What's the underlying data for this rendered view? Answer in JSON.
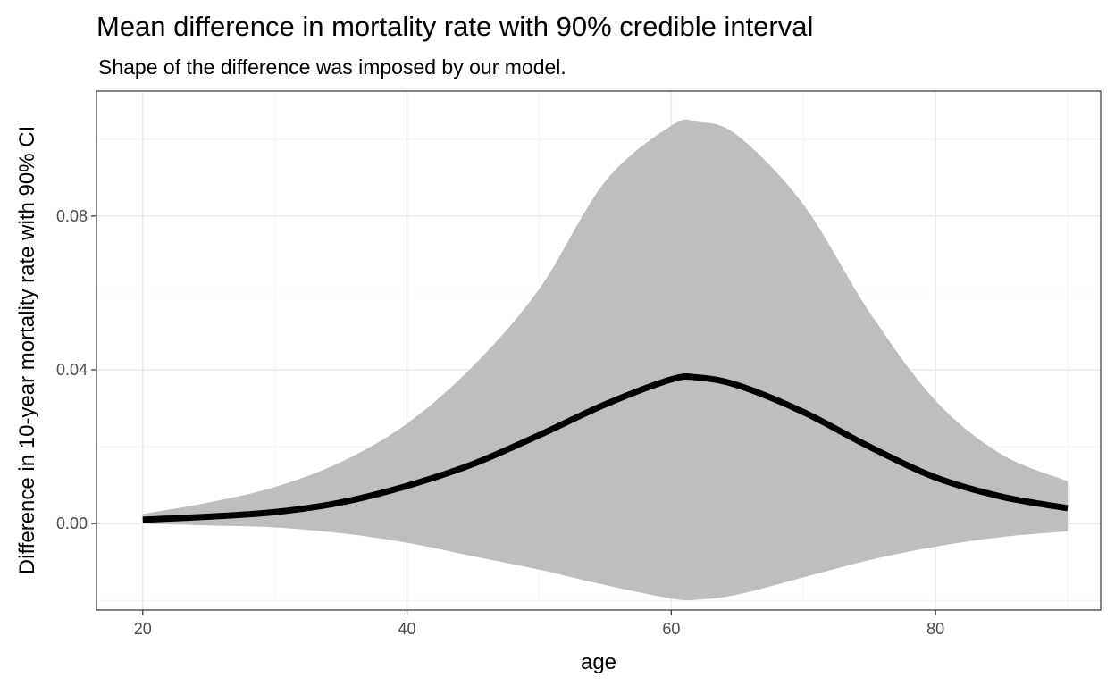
{
  "chart_data": {
    "type": "area",
    "title": "Mean difference in mortality rate with 90% credible interval",
    "subtitle": "Shape of the difference was imposed by our model.",
    "xlabel": "age",
    "ylabel": "Difference in 10-year mortality rate with 90% CI",
    "xlim": [
      16.5,
      92.5
    ],
    "ylim": [
      -0.0225,
      0.1125
    ],
    "x_ticks": [
      "20",
      "40",
      "60",
      "80"
    ],
    "y_ticks": [
      "0.00",
      "0.04",
      "0.08"
    ],
    "grid": true,
    "legend": "none",
    "colors": {
      "band": "#bebebe",
      "line": "#000000",
      "grid_major": "#ebebeb",
      "grid_minor": "#f4f4f4",
      "panel_border": "#333333",
      "tick_text": "#4d4d4d"
    },
    "series": [
      {
        "kind": "ribbon",
        "x": [
          20,
          25,
          30,
          35,
          40,
          45,
          50,
          55,
          60,
          62,
          65,
          70,
          75,
          80,
          85,
          90
        ],
        "lower": [
          0.0,
          -0.0005,
          -0.001,
          -0.0025,
          -0.005,
          -0.0085,
          -0.012,
          -0.016,
          -0.0195,
          -0.0198,
          -0.0185,
          -0.014,
          -0.0095,
          -0.006,
          -0.0035,
          -0.002
        ],
        "upper": [
          0.0025,
          0.0055,
          0.0095,
          0.016,
          0.026,
          0.041,
          0.061,
          0.089,
          0.1035,
          0.1045,
          0.101,
          0.083,
          0.055,
          0.032,
          0.018,
          0.011
        ]
      },
      {
        "kind": "line",
        "x": [
          20,
          25,
          30,
          35,
          40,
          45,
          50,
          55,
          60,
          62,
          65,
          70,
          75,
          80,
          85,
          90
        ],
        "values": [
          0.001,
          0.0018,
          0.003,
          0.0055,
          0.0098,
          0.0155,
          0.023,
          0.031,
          0.0375,
          0.038,
          0.036,
          0.029,
          0.02,
          0.012,
          0.007,
          0.004
        ]
      }
    ]
  }
}
